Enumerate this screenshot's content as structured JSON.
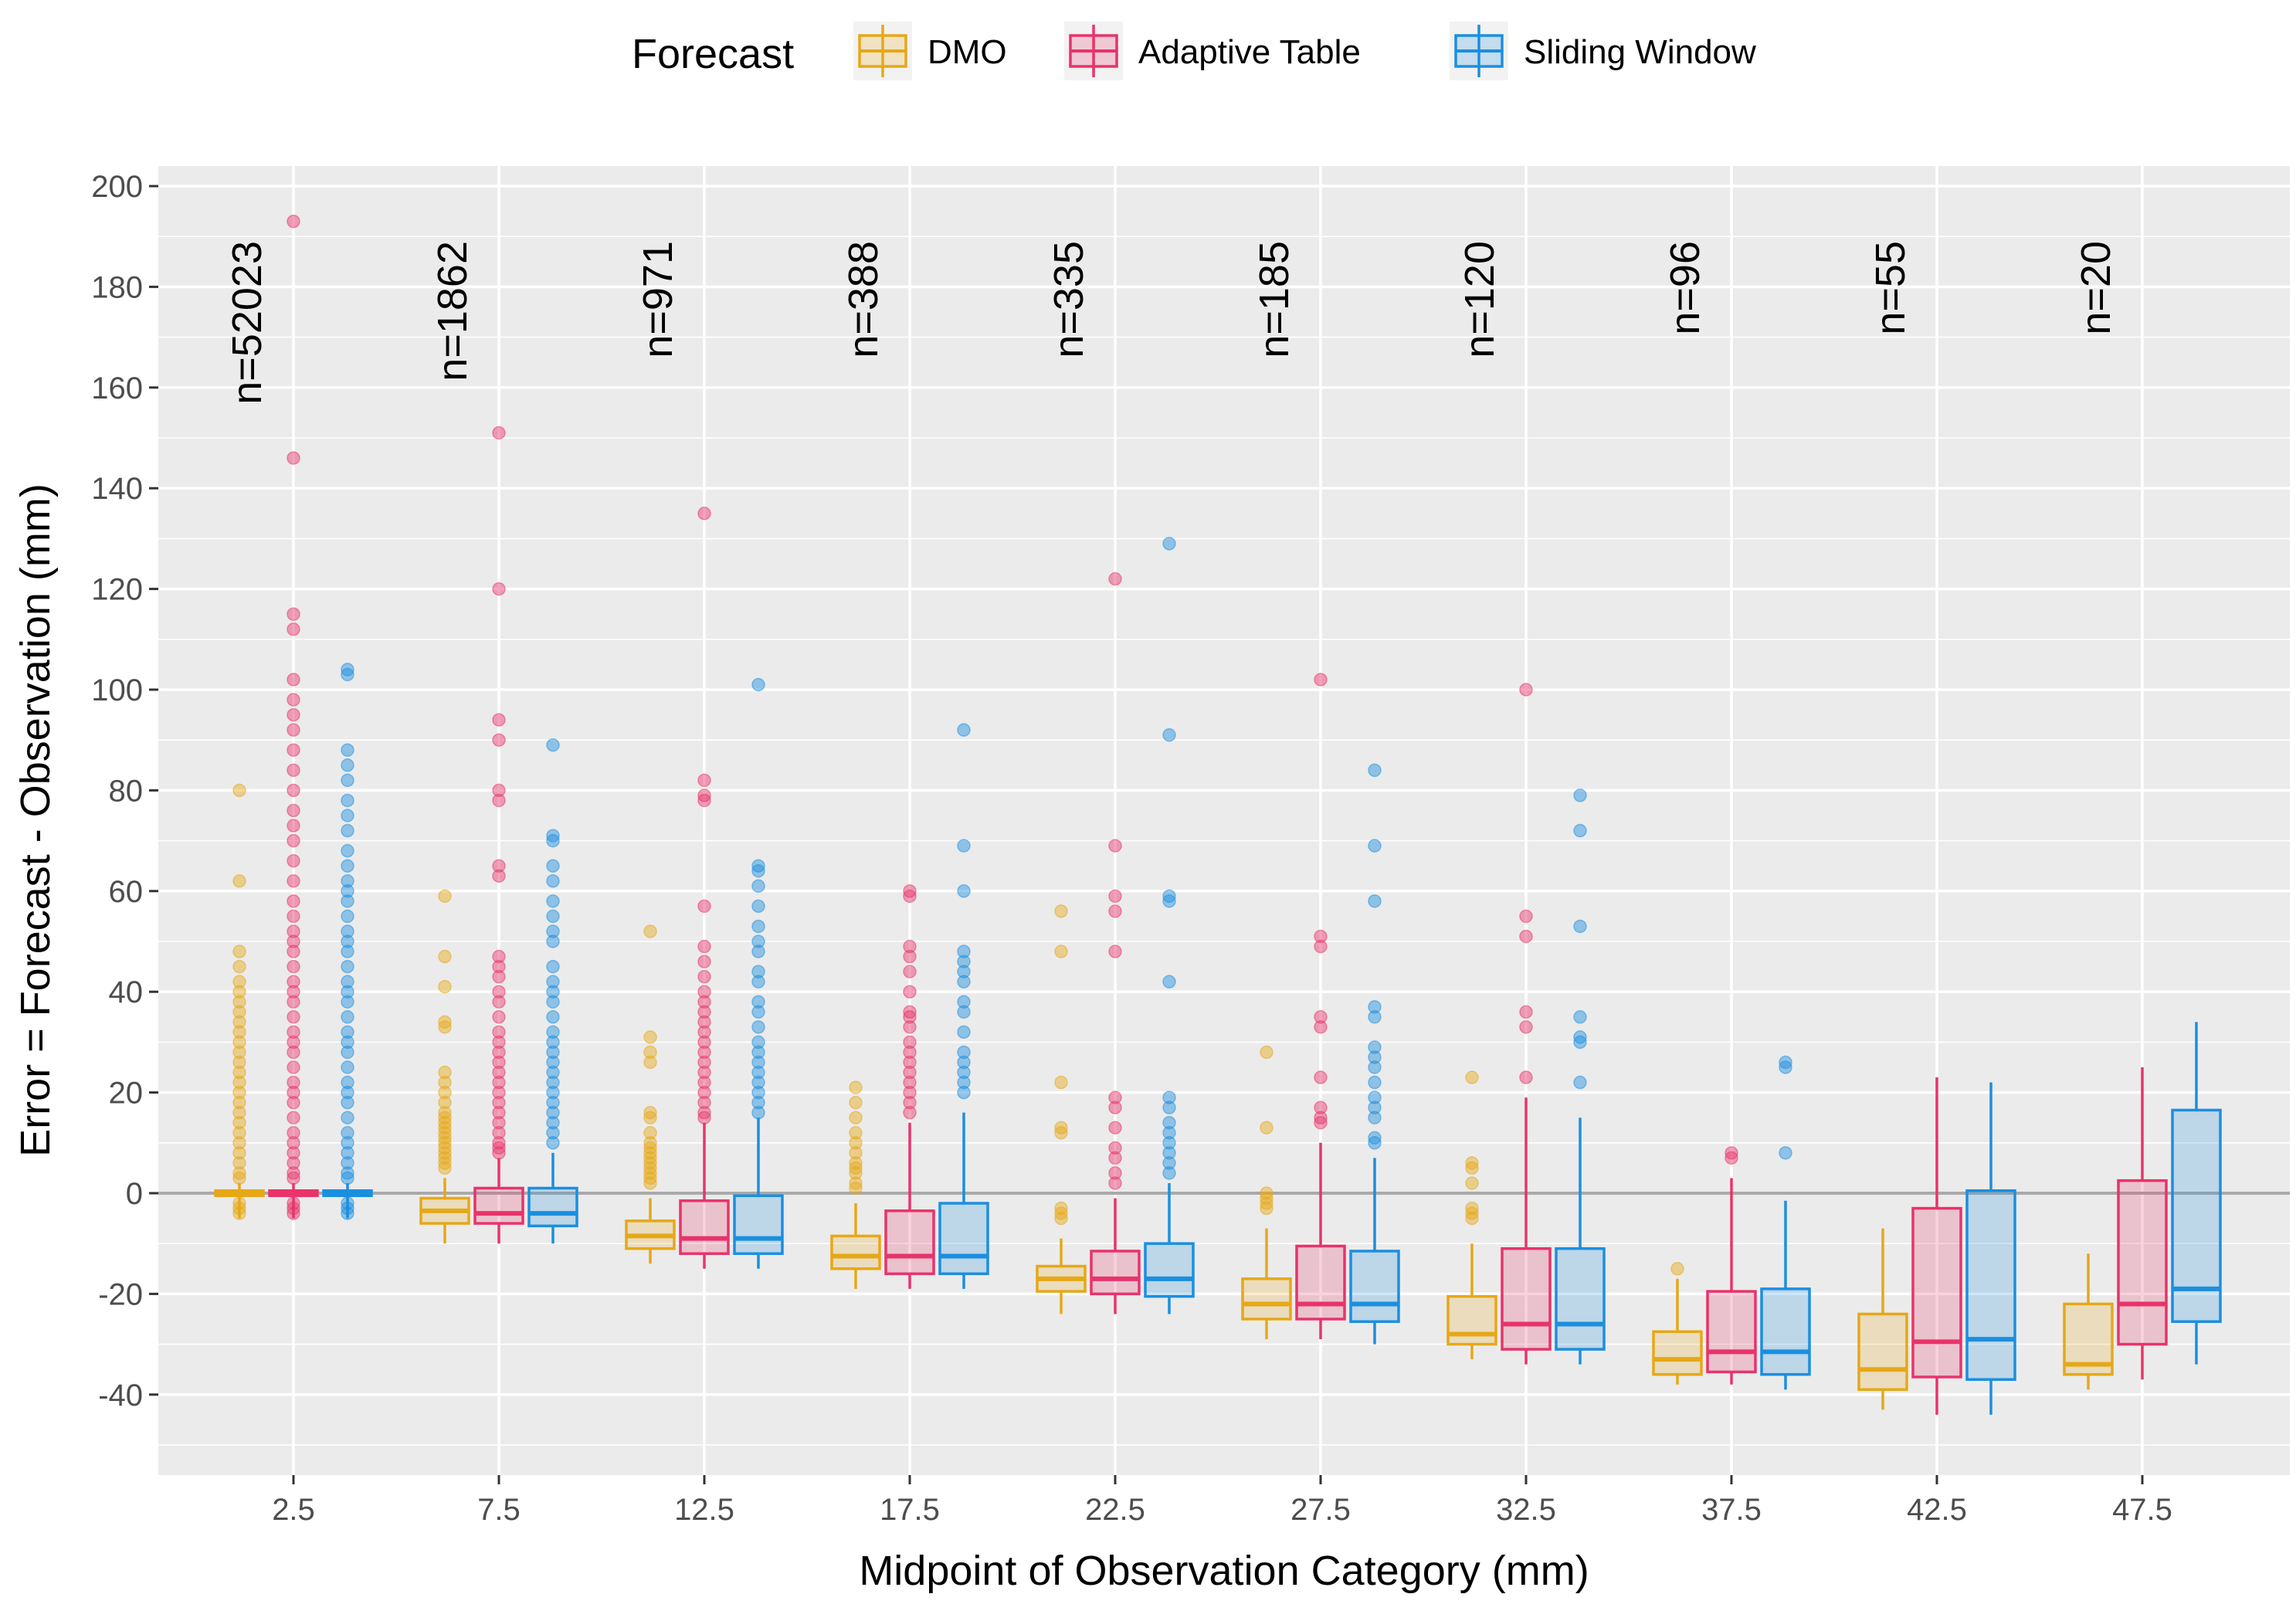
{
  "chart_data": {
    "type": "boxplot",
    "title": "",
    "xlabel": "Midpoint of Observation Category (mm)",
    "ylabel": "Error = Forecast - Observation (mm)",
    "ylim": [
      -50,
      205
    ],
    "yticks": [
      200,
      180,
      160,
      140,
      120,
      100,
      80,
      60,
      40,
      20,
      0,
      -20,
      -40
    ],
    "grid": true,
    "reference_line": 0,
    "categories": [
      "2.5",
      "7.5",
      "12.5",
      "17.5",
      "22.5",
      "27.5",
      "32.5",
      "37.5",
      "42.5",
      "47.5"
    ],
    "sample_sizes": [
      "n=52023",
      "n=1862",
      "n=971",
      "n=388",
      "n=335",
      "n=185",
      "n=120",
      "n=96",
      "n=55",
      "n=20"
    ],
    "legend": {
      "title": "Forecast",
      "position": "top",
      "entries": [
        "DMO",
        "Adaptive Table",
        "Sliding Window"
      ]
    },
    "series": [
      {
        "name": "DMO",
        "color": "#E6A817",
        "boxes": [
          {
            "q1": -0.5,
            "median": 0,
            "q3": 0.5,
            "lower": -5,
            "upper": 2,
            "outliers": [
              80,
              62,
              48,
              45,
              42,
              40,
              38,
              36,
              34,
              32,
              30,
              28,
              26,
              24,
              22,
              20,
              18,
              16,
              14,
              12,
              10,
              8,
              6,
              4,
              3,
              -2,
              -3,
              -4
            ]
          },
          {
            "q1": -6,
            "median": -3.5,
            "q3": -1,
            "lower": -10,
            "upper": 3,
            "outliers": [
              59,
              47,
              41,
              34,
              33,
              24,
              22,
              20,
              18,
              16,
              15,
              14,
              13,
              12,
              11,
              10,
              9,
              8,
              7,
              6,
              5
            ]
          },
          {
            "q1": -11,
            "median": -8.5,
            "q3": -5.5,
            "lower": -14,
            "upper": -1,
            "outliers": [
              52,
              31,
              28,
              26,
              16,
              15,
              12,
              10,
              9,
              8,
              7,
              6,
              5,
              4,
              3,
              2
            ]
          },
          {
            "q1": -15,
            "median": -12.5,
            "q3": -8.5,
            "lower": -19,
            "upper": -2,
            "outliers": [
              21,
              18,
              15,
              12,
              10,
              8,
              6,
              5,
              4,
              2,
              1
            ]
          },
          {
            "q1": -19.5,
            "median": -17,
            "q3": -14.5,
            "lower": -24,
            "upper": -9,
            "outliers": [
              56,
              48,
              22,
              13,
              12,
              -3,
              -4,
              -5
            ]
          },
          {
            "q1": -25,
            "median": -22,
            "q3": -17,
            "lower": -29,
            "upper": -7,
            "outliers": [
              28,
              13,
              0,
              -1,
              -2,
              -3
            ]
          },
          {
            "q1": -30,
            "median": -28,
            "q3": -20.5,
            "lower": -33,
            "upper": -10,
            "outliers": [
              23,
              6,
              5,
              2,
              -3,
              -4,
              -5
            ]
          },
          {
            "q1": -36,
            "median": -33,
            "q3": -27.5,
            "lower": -38,
            "upper": -17,
            "outliers": [
              -15
            ]
          },
          {
            "q1": -39,
            "median": -35,
            "q3": -24,
            "lower": -43,
            "upper": -7,
            "outliers": []
          },
          {
            "q1": -36,
            "median": -34,
            "q3": -22,
            "lower": -39,
            "upper": -12,
            "outliers": []
          }
        ]
      },
      {
        "name": "Adaptive Table",
        "color": "#E8336B",
        "boxes": [
          {
            "q1": -0.5,
            "median": 0,
            "q3": 0.5,
            "lower": -5,
            "upper": 2,
            "outliers": [
              193,
              146,
              115,
              112,
              102,
              98,
              95,
              92,
              88,
              84,
              80,
              76,
              73,
              70,
              66,
              62,
              58,
              55,
              52,
              50,
              48,
              45,
              42,
              40,
              38,
              35,
              32,
              30,
              28,
              25,
              22,
              20,
              18,
              15,
              12,
              10,
              8,
              6,
              4,
              3,
              -2,
              -3,
              -4
            ]
          },
          {
            "q1": -6,
            "median": -4,
            "q3": 1,
            "lower": -10,
            "upper": 7,
            "outliers": [
              151,
              120,
              94,
              90,
              80,
              78,
              65,
              63,
              47,
              45,
              43,
              40,
              38,
              35,
              32,
              30,
              28,
              26,
              24,
              22,
              20,
              18,
              16,
              14,
              12,
              10,
              9,
              8
            ]
          },
          {
            "q1": -12,
            "median": -9,
            "q3": -1.5,
            "lower": -15,
            "upper": 14,
            "outliers": [
              135,
              82,
              79,
              78,
              57,
              49,
              46,
              43,
              40,
              38,
              36,
              34,
              32,
              30,
              28,
              26,
              24,
              22,
              20,
              18,
              16,
              15
            ]
          },
          {
            "q1": -16,
            "median": -12.5,
            "q3": -3.5,
            "lower": -19,
            "upper": 14,
            "outliers": [
              60,
              59,
              49,
              47,
              44,
              40,
              36,
              35,
              33,
              30,
              28,
              26,
              24,
              22,
              20,
              18,
              16
            ]
          },
          {
            "q1": -20,
            "median": -17,
            "q3": -11.5,
            "lower": -24,
            "upper": -1,
            "outliers": [
              122,
              69,
              59,
              56,
              48,
              19,
              17,
              13,
              9,
              7,
              4,
              2
            ]
          },
          {
            "q1": -25,
            "median": -22,
            "q3": -10.5,
            "lower": -29,
            "upper": 10,
            "outliers": [
              102,
              51,
              49,
              35,
              33,
              23,
              17,
              15,
              14
            ]
          },
          {
            "q1": -31,
            "median": -26,
            "q3": -11,
            "lower": -34,
            "upper": 19,
            "outliers": [
              100,
              55,
              51,
              36,
              33,
              23
            ]
          },
          {
            "q1": -35.5,
            "median": -31.5,
            "q3": -19.5,
            "lower": -38,
            "upper": 3,
            "outliers": [
              8,
              7
            ]
          },
          {
            "q1": -36.5,
            "median": -29.5,
            "q3": -3,
            "lower": -44,
            "upper": 23,
            "outliers": []
          },
          {
            "q1": -30,
            "median": -22,
            "q3": 2.5,
            "lower": -37,
            "upper": 25,
            "outliers": []
          }
        ]
      },
      {
        "name": "Sliding Window",
        "color": "#1B8FDF",
        "boxes": [
          {
            "q1": -0.5,
            "median": 0,
            "q3": 0.5,
            "lower": -5,
            "upper": 2,
            "outliers": [
              104,
              103,
              88,
              85,
              82,
              78,
              75,
              72,
              68,
              65,
              62,
              60,
              58,
              55,
              52,
              50,
              48,
              45,
              42,
              40,
              38,
              35,
              32,
              30,
              28,
              25,
              22,
              20,
              18,
              15,
              12,
              10,
              8,
              6,
              4,
              3,
              -2,
              -3,
              -4
            ]
          },
          {
            "q1": -6.5,
            "median": -4,
            "q3": 1,
            "lower": -10,
            "upper": 8,
            "outliers": [
              89,
              71,
              70,
              65,
              62,
              58,
              55,
              52,
              50,
              45,
              42,
              40,
              38,
              35,
              32,
              30,
              28,
              26,
              24,
              22,
              20,
              18,
              16,
              14,
              12,
              10
            ]
          },
          {
            "q1": -12,
            "median": -9,
            "q3": -0.5,
            "lower": -15,
            "upper": 15,
            "outliers": [
              101,
              65,
              64,
              61,
              57,
              53,
              50,
              48,
              44,
              42,
              38,
              36,
              33,
              30,
              28,
              26,
              24,
              22,
              20,
              18,
              16
            ]
          },
          {
            "q1": -16,
            "median": -12.5,
            "q3": -2,
            "lower": -19,
            "upper": 16,
            "outliers": [
              92,
              69,
              60,
              48,
              46,
              44,
              42,
              38,
              36,
              32,
              28,
              26,
              24,
              22,
              20
            ]
          },
          {
            "q1": -20.5,
            "median": -17,
            "q3": -10,
            "lower": -24,
            "upper": 2,
            "outliers": [
              129,
              91,
              59,
              58,
              42,
              19,
              17,
              14,
              12,
              10,
              8,
              6,
              4
            ]
          },
          {
            "q1": -25.5,
            "median": -22,
            "q3": -11.5,
            "lower": -30,
            "upper": 7,
            "outliers": [
              84,
              69,
              58,
              37,
              35,
              29,
              27,
              25,
              22,
              19,
              17,
              15,
              11,
              10
            ]
          },
          {
            "q1": -31,
            "median": -26,
            "q3": -11,
            "lower": -34,
            "upper": 15,
            "outliers": [
              79,
              72,
              53,
              35,
              31,
              30,
              22
            ]
          },
          {
            "q1": -36,
            "median": -31.5,
            "q3": -19,
            "lower": -39,
            "upper": -1.5,
            "outliers": [
              26,
              25,
              8
            ]
          },
          {
            "q1": -37,
            "median": -29,
            "q3": 0.5,
            "lower": -44,
            "upper": 22,
            "outliers": []
          },
          {
            "q1": -25.5,
            "median": -19,
            "q3": 16.5,
            "lower": -34,
            "upper": 34,
            "outliers": []
          }
        ]
      }
    ]
  }
}
